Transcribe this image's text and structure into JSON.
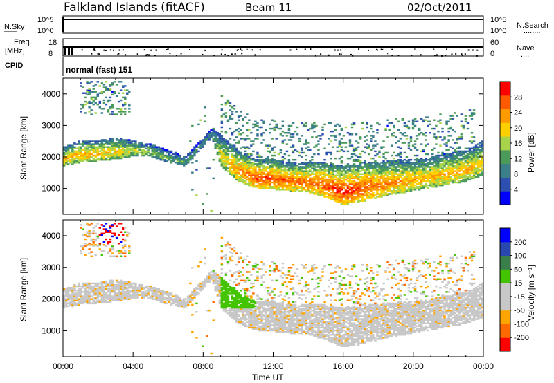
{
  "header": {
    "station": "Falkland Islands (fitACF)",
    "beam": "Beam 11",
    "date": "02/Oct/2011"
  },
  "top_panels": {
    "nsky_label": "N.Sky",
    "nsearch_label": "N.Search",
    "nsearch_dots": "........",
    "nsky_ticks": [
      "10^5",
      "10^0"
    ],
    "nsearch_ticks": [
      "10^5",
      "10^0"
    ],
    "freq_label": "Freq.",
    "freq_unit": "[MHz]",
    "freq_ticks": [
      "18",
      "8"
    ],
    "nave_label": "Nave",
    "nave_dots": "....",
    "nave_ticks": [
      "60",
      "0"
    ],
    "cpid_label": "CPID",
    "cpid_value": "normal (fast) 151"
  },
  "colors": {
    "power_scale": [
      "#0000ff",
      "#2c4fb0",
      "#3a7f8a",
      "#4c9a5a",
      "#a7d44a",
      "#ffd000",
      "#ff9a00",
      "#ff5a00",
      "#ff0000"
    ],
    "velocity_scale": [
      "#ff0000",
      "#ff6a00",
      "#ffa500",
      "#c8c8c8",
      "#c8c8c8",
      "#44c400",
      "#3a7f4a",
      "#2848b0",
      "#0000ff"
    ],
    "ground_scatter": "#c8c8c8"
  },
  "chart_data": [
    {
      "type": "heatmap",
      "name_panel": "power",
      "ylabel": "Slant Range [km]",
      "ytick_labels": [
        "1000",
        "2000",
        "3000",
        "4000"
      ],
      "y_ticks": [
        1000,
        2000,
        3000,
        4000
      ],
      "ylim": [
        180,
        4500
      ],
      "xlim": [
        0,
        24
      ],
      "colorbar_label": "Power [dB]",
      "colorbar_ticks": [
        "4",
        "8",
        "12",
        "16",
        "20",
        "24",
        "28"
      ],
      "colorbar_values": [
        4,
        8,
        12,
        16,
        20,
        24,
        28
      ],
      "colorbar_range": [
        0,
        32
      ],
      "echo_band_profile": {
        "time_h": [
          0,
          1,
          2,
          3,
          4,
          5,
          6,
          7,
          8.5,
          9,
          10,
          11,
          12,
          13,
          14,
          15,
          16,
          17,
          18,
          19,
          20,
          21,
          22,
          23,
          24
        ],
        "lower_km": [
          1700,
          1800,
          1850,
          1900,
          2000,
          2000,
          1800,
          1700,
          2600,
          1700,
          1200,
          1000,
          950,
          900,
          850,
          700,
          450,
          550,
          700,
          800,
          900,
          1000,
          1100,
          1200,
          1400
        ],
        "upper_km": [
          2300,
          2500,
          2500,
          2600,
          2500,
          2400,
          2200,
          2000,
          2900,
          2700,
          2200,
          1900,
          1900,
          1800,
          1800,
          1800,
          1700,
          1800,
          1800,
          1900,
          1900,
          2000,
          2100,
          2200,
          2500
        ],
        "peak_power_db": [
          20,
          22,
          22,
          20,
          18,
          16,
          14,
          12,
          10,
          18,
          24,
          28,
          28,
          26,
          26,
          28,
          30,
          28,
          26,
          24,
          22,
          22,
          22,
          22,
          20
        ]
      }
    },
    {
      "type": "heatmap",
      "name_panel": "velocity",
      "ylabel": "Slant Range [km]",
      "ytick_labels": [
        "1000",
        "2000",
        "3000",
        "4000"
      ],
      "y_ticks": [
        1000,
        2000,
        3000,
        4000
      ],
      "ylim": [
        180,
        4500
      ],
      "xlim": [
        0,
        24
      ],
      "xlabel": "Time UT",
      "xtick_labels": [
        "00:00",
        "04:00",
        "08:00",
        "12:00",
        "16:00",
        "20:00",
        "00:00"
      ],
      "x_ticks": [
        0,
        4,
        8,
        12,
        16,
        20,
        24
      ],
      "colorbar_label": "Velocity [m s⁻¹]",
      "colorbar_ticks": [
        "200",
        "100",
        "50",
        "15",
        "-15",
        "-50",
        "-100",
        "-200"
      ],
      "colorbar_values": [
        200,
        100,
        50,
        15,
        -15,
        -50,
        -100,
        -200
      ],
      "dominant_state": "ground scatter (grey) along main echo band"
    }
  ]
}
